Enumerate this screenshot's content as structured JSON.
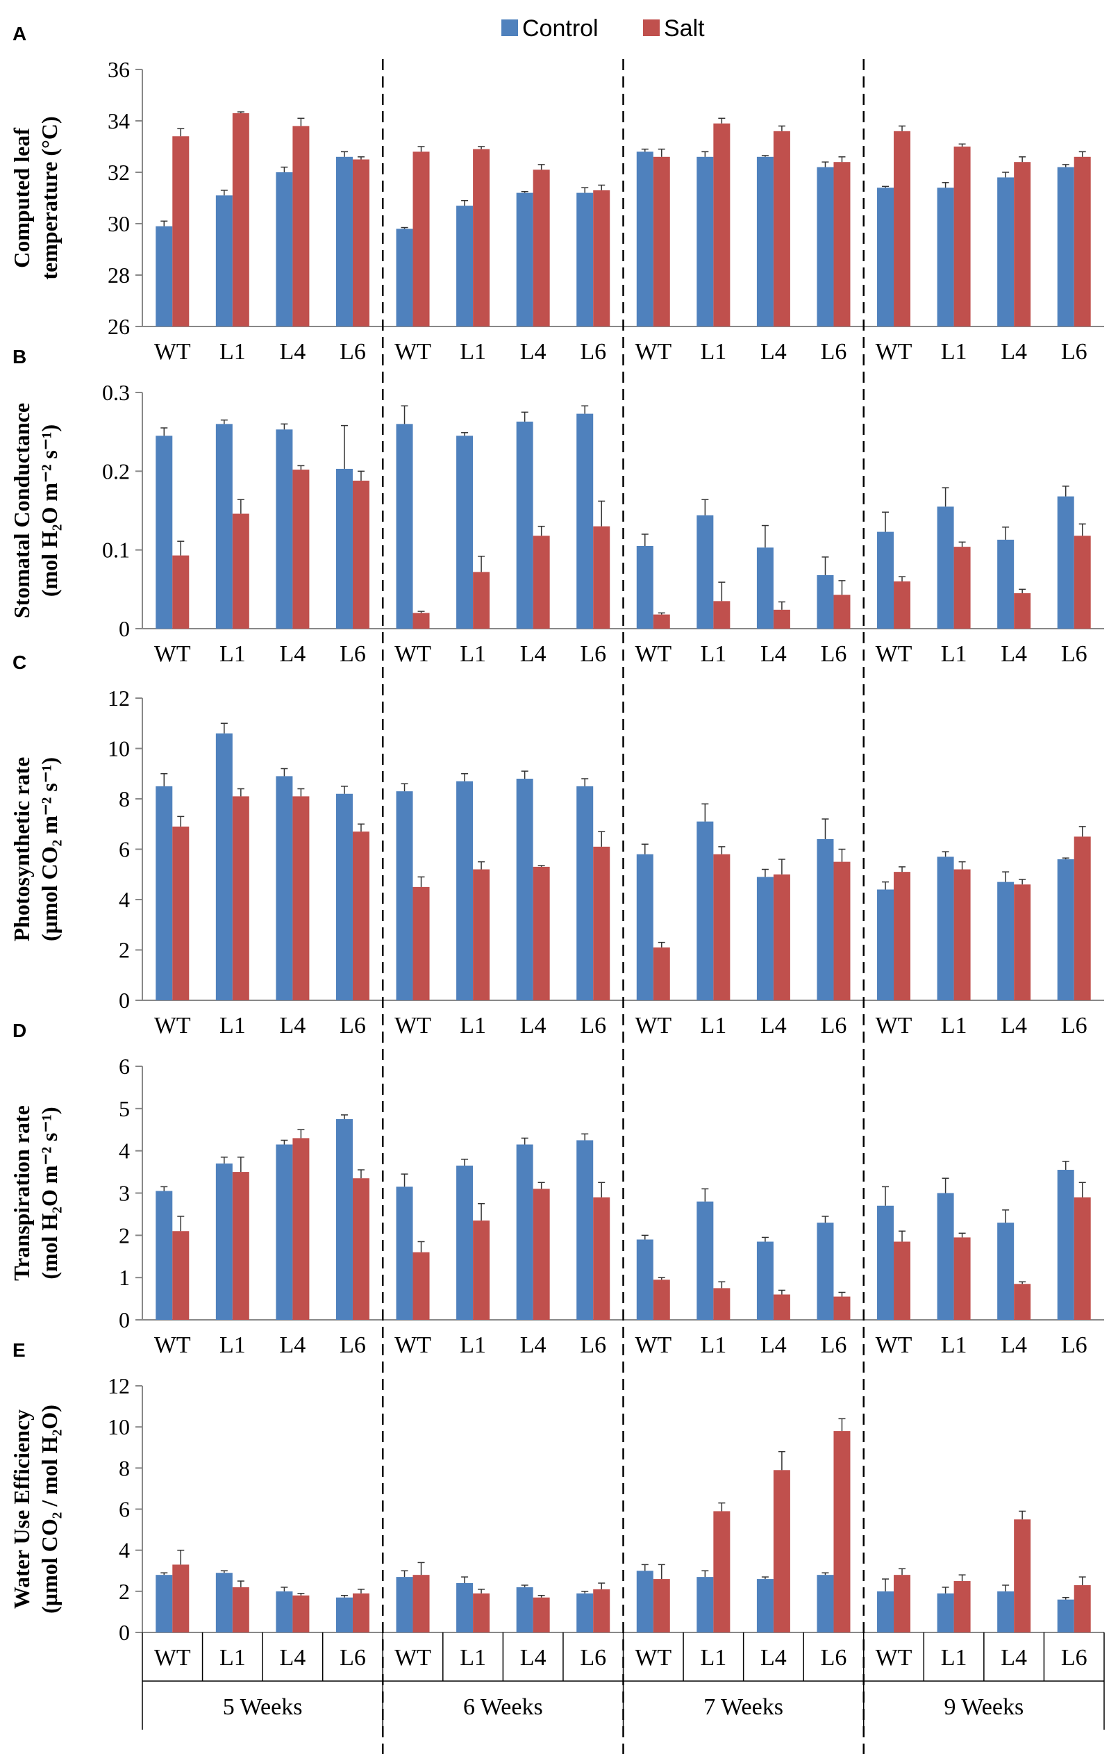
{
  "colors": {
    "control": "#4f81bd",
    "salt": "#c0504d",
    "error": "#333333",
    "axis": "#888888"
  },
  "legend": {
    "control": "Control",
    "salt": "Salt",
    "placement": "top-center"
  },
  "weeks": [
    "5 Weeks",
    "6 Weeks",
    "7 Weeks",
    "9 Weeks"
  ],
  "chart_data": [
    {
      "type": "bar",
      "letter": "A",
      "ylabel_lines": [
        "Computed  leaf",
        "temperature  (°C)"
      ],
      "ylim": [
        26,
        36
      ],
      "yticks": [
        26,
        28,
        30,
        32,
        34,
        36
      ],
      "ytick_labels": [
        "26",
        "28",
        "30",
        "32",
        "34",
        "36"
      ],
      "categories": [
        "WT",
        "L1",
        "L4",
        "L6",
        "WT",
        "L1",
        "L4",
        "L6",
        "WT",
        "L1",
        "L4",
        "L6",
        "WT",
        "L1",
        "L4",
        "L6"
      ],
      "series": [
        {
          "name": "Control",
          "values": [
            29.9,
            31.1,
            32.0,
            32.6,
            29.8,
            30.7,
            31.2,
            31.2,
            32.8,
            32.6,
            32.6,
            32.2,
            31.4,
            31.4,
            31.8,
            32.2
          ],
          "errors": [
            0.2,
            0.2,
            0.2,
            0.2,
            0.05,
            0.2,
            0.05,
            0.2,
            0.1,
            0.2,
            0.05,
            0.2,
            0.05,
            0.2,
            0.2,
            0.1
          ]
        },
        {
          "name": "Salt",
          "values": [
            33.4,
            34.3,
            33.8,
            32.5,
            32.8,
            32.9,
            32.1,
            31.3,
            32.6,
            33.9,
            33.6,
            32.4,
            33.6,
            33.0,
            32.4,
            32.6
          ],
          "errors": [
            0.3,
            0.05,
            0.3,
            0.1,
            0.2,
            0.1,
            0.2,
            0.2,
            0.3,
            0.2,
            0.2,
            0.2,
            0.2,
            0.1,
            0.2,
            0.2
          ]
        }
      ]
    },
    {
      "type": "bar",
      "letter": "B",
      "ylabel_lines": [
        "Stomatal Conductance",
        "(mol H₂O m⁻² s⁻¹)"
      ],
      "ylim": [
        0,
        0.3
      ],
      "yticks": [
        0,
        0.1,
        0.2,
        0.3
      ],
      "ytick_labels": [
        "0",
        "0.1",
        "0.2",
        "0.3"
      ],
      "categories": [
        "WT",
        "L1",
        "L4",
        "L6",
        "WT",
        "L1",
        "L4",
        "L6",
        "WT",
        "L1",
        "L4",
        "L6",
        "WT",
        "L1",
        "L4",
        "L6"
      ],
      "series": [
        {
          "name": "Control",
          "values": [
            0.245,
            0.26,
            0.253,
            0.203,
            0.26,
            0.245,
            0.263,
            0.273,
            0.105,
            0.144,
            0.103,
            0.068,
            0.123,
            0.155,
            0.113,
            0.168
          ],
          "errors": [
            0.01,
            0.005,
            0.007,
            0.055,
            0.023,
            0.004,
            0.012,
            0.01,
            0.015,
            0.02,
            0.028,
            0.023,
            0.025,
            0.024,
            0.016,
            0.013
          ]
        },
        {
          "name": "Salt",
          "values": [
            0.093,
            0.146,
            0.202,
            0.188,
            0.02,
            0.072,
            0.118,
            0.13,
            0.018,
            0.035,
            0.024,
            0.043,
            0.06,
            0.104,
            0.045,
            0.118
          ],
          "errors": [
            0.018,
            0.018,
            0.005,
            0.012,
            0.002,
            0.02,
            0.012,
            0.032,
            0.002,
            0.024,
            0.01,
            0.018,
            0.006,
            0.006,
            0.005,
            0.015
          ]
        }
      ]
    },
    {
      "type": "bar",
      "letter": "C",
      "ylabel_lines": [
        "Photosynthetic  rate",
        "(µmol  CO₂ m⁻² s⁻¹)"
      ],
      "ylim": [
        0,
        12
      ],
      "yticks": [
        0,
        2,
        4,
        6,
        8,
        10,
        12
      ],
      "ytick_labels": [
        "0",
        "2",
        "4",
        "6",
        "8",
        "10",
        "12"
      ],
      "categories": [
        "WT",
        "L1",
        "L4",
        "L6",
        "WT",
        "L1",
        "L4",
        "L6",
        "WT",
        "L1",
        "L4",
        "L6",
        "WT",
        "L1",
        "L4",
        "L6"
      ],
      "series": [
        {
          "name": "Control",
          "values": [
            8.5,
            10.6,
            8.9,
            8.2,
            8.3,
            8.7,
            8.8,
            8.5,
            5.8,
            7.1,
            4.9,
            6.4,
            4.4,
            5.7,
            4.7,
            5.6
          ],
          "errors": [
            0.5,
            0.4,
            0.3,
            0.3,
            0.3,
            0.3,
            0.3,
            0.3,
            0.4,
            0.7,
            0.3,
            0.8,
            0.3,
            0.2,
            0.4,
            0.05
          ]
        },
        {
          "name": "Salt",
          "values": [
            6.9,
            8.1,
            8.1,
            6.7,
            4.5,
            5.2,
            5.3,
            6.1,
            2.1,
            5.8,
            5.0,
            5.5,
            5.1,
            5.2,
            4.6,
            6.5
          ],
          "errors": [
            0.4,
            0.3,
            0.3,
            0.3,
            0.4,
            0.3,
            0.05,
            0.6,
            0.2,
            0.3,
            0.6,
            0.5,
            0.2,
            0.3,
            0.2,
            0.4
          ]
        }
      ]
    },
    {
      "type": "bar",
      "letter": "D",
      "ylabel_lines": [
        "Transpiration  rate",
        "(mol H₂O  m⁻² s⁻¹)"
      ],
      "ylim": [
        0,
        6
      ],
      "yticks": [
        0,
        1,
        2,
        3,
        4,
        5,
        6
      ],
      "ytick_labels": [
        "0",
        "1",
        "2",
        "3",
        "4",
        "5",
        "6"
      ],
      "categories": [
        "WT",
        "L1",
        "L4",
        "L6",
        "WT",
        "L1",
        "L4",
        "L6",
        "WT",
        "L1",
        "L4",
        "L6",
        "WT",
        "L1",
        "L4",
        "L6"
      ],
      "series": [
        {
          "name": "Control",
          "values": [
            3.05,
            3.7,
            4.15,
            4.75,
            3.15,
            3.65,
            4.15,
            4.25,
            1.9,
            2.8,
            1.85,
            2.3,
            2.7,
            3.0,
            2.3,
            3.55
          ],
          "errors": [
            0.1,
            0.15,
            0.1,
            0.1,
            0.3,
            0.15,
            0.15,
            0.15,
            0.1,
            0.3,
            0.1,
            0.15,
            0.45,
            0.35,
            0.3,
            0.2
          ]
        },
        {
          "name": "Salt",
          "values": [
            2.1,
            3.5,
            4.3,
            3.35,
            1.6,
            2.35,
            3.1,
            2.9,
            0.95,
            0.75,
            0.6,
            0.55,
            1.85,
            1.95,
            0.85,
            2.9
          ],
          "errors": [
            0.35,
            0.35,
            0.2,
            0.2,
            0.25,
            0.4,
            0.15,
            0.35,
            0.05,
            0.15,
            0.1,
            0.1,
            0.25,
            0.1,
            0.05,
            0.35
          ]
        }
      ]
    },
    {
      "type": "bar",
      "letter": "E",
      "ylabel_lines": [
        "Water Use Efficiency",
        "(µmol CO₂ / mol H₂O)"
      ],
      "ylim": [
        0,
        12
      ],
      "yticks": [
        0,
        2,
        4,
        6,
        8,
        10,
        12
      ],
      "ytick_labels": [
        "0",
        "2",
        "4",
        "6",
        "8",
        "10",
        "12"
      ],
      "categories": [
        "WT",
        "L1",
        "L4",
        "L6",
        "WT",
        "L1",
        "L4",
        "L6",
        "WT",
        "L1",
        "L4",
        "L6",
        "WT",
        "L1",
        "L4",
        "L6"
      ],
      "series": [
        {
          "name": "Control",
          "values": [
            2.8,
            2.9,
            2.0,
            1.7,
            2.7,
            2.4,
            2.2,
            1.9,
            3.0,
            2.7,
            2.6,
            2.8,
            2.0,
            1.9,
            2.0,
            1.6
          ],
          "errors": [
            0.1,
            0.1,
            0.2,
            0.1,
            0.3,
            0.3,
            0.1,
            0.1,
            0.3,
            0.3,
            0.1,
            0.1,
            0.6,
            0.3,
            0.3,
            0.1
          ]
        },
        {
          "name": "Salt",
          "values": [
            3.3,
            2.2,
            1.8,
            1.9,
            2.8,
            1.9,
            1.7,
            2.1,
            2.6,
            5.9,
            7.9,
            9.8,
            2.8,
            2.5,
            5.5,
            2.3
          ],
          "errors": [
            0.7,
            0.3,
            0.1,
            0.2,
            0.6,
            0.2,
            0.1,
            0.3,
            0.7,
            0.4,
            0.9,
            0.6,
            0.3,
            0.3,
            0.4,
            0.4
          ]
        }
      ]
    }
  ]
}
